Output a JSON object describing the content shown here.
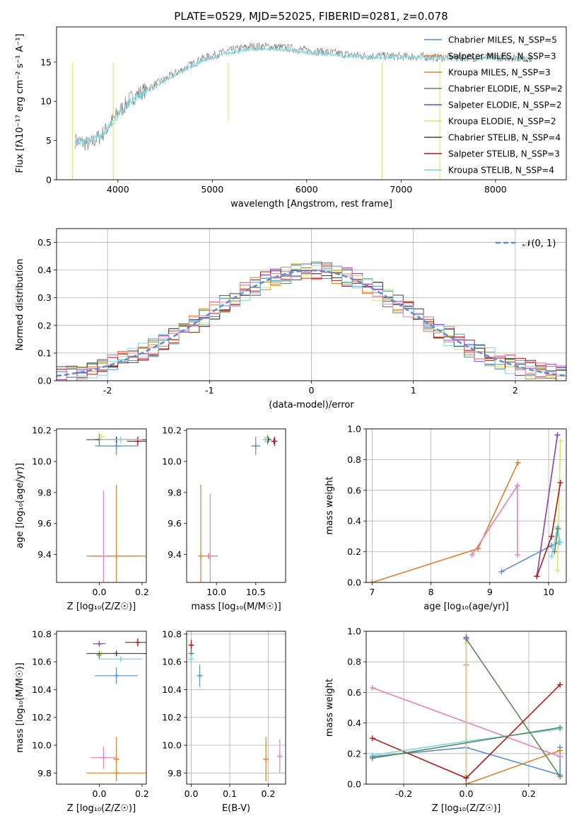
{
  "title": "PLATE=0529, MJD=52025, FIBERID=0281, z=0.078",
  "colors": [
    "#5a8dd6",
    "#e07f2c",
    "#e2832a",
    "#5a8a5a",
    "#8a3fb0",
    "#d7e56e",
    "#444444",
    "#b01818",
    "#7ad8e0",
    "#e882b4",
    "#808080"
  ],
  "chart_data": [
    {
      "id": "spectrum",
      "type": "line",
      "xlabel": "wavelength [Angstrom, rest frame]",
      "ylabel": "Flux [fλ10⁻¹⁷ erg cm⁻² s⁻¹ A⁻¹]",
      "xlim": [
        3350,
        8750
      ],
      "ylim": [
        0,
        19.5
      ],
      "xticks": [
        4000,
        5000,
        6000,
        7000,
        8000
      ],
      "yticks": [
        0,
        5,
        10,
        15
      ],
      "grid": false,
      "legend_position": "right",
      "legend": [
        {
          "label": "Chabrier MILES, N_SSP=5",
          "color": "#5a8dd6"
        },
        {
          "label": "Salpeter MILES, N_SSP=3",
          "color": "#e07f2c"
        },
        {
          "label": "Kroupa MILES, N_SSP=3",
          "color": "#e2832a"
        },
        {
          "label": "Chabrier ELODIE, N_SSP=2",
          "color": "#5a8a5a"
        },
        {
          "label": "Salpeter ELODIE, N_SSP=2",
          "color": "#8a3fb0"
        },
        {
          "label": "Kroupa ELODIE, N_SSP=2",
          "color": "#d7e56e"
        },
        {
          "label": "Chabrier STELIB, N_SSP=4",
          "color": "#444444"
        },
        {
          "label": "Salpeter STELIB, N_SSP=3",
          "color": "#b01818"
        },
        {
          "label": "Kroupa STELIB, N_SSP=4",
          "color": "#7ad8e0"
        }
      ],
      "series": [
        {
          "name": "observed",
          "color": "#808080",
          "x": [
            3550,
            3700,
            3850,
            4000,
            4150,
            4300,
            4450,
            4600,
            4750,
            4900,
            5050,
            5200,
            5400,
            5600,
            5800,
            6000,
            6200,
            6400,
            6600,
            6800,
            7000,
            7200,
            7400,
            7600,
            7800,
            8000,
            8200,
            8400
          ],
          "y": [
            5.0,
            4.5,
            6.0,
            8.5,
            10.5,
            11.5,
            12.5,
            13.5,
            14.5,
            15.5,
            16.0,
            16.5,
            17.0,
            17.0,
            16.8,
            16.5,
            16.3,
            16.0,
            15.8,
            15.8,
            15.7,
            15.7,
            15.6,
            15.6,
            15.6,
            15.6,
            15.6,
            15.5
          ]
        },
        {
          "name": "model",
          "color": "#7ad8e0",
          "x": [
            3550,
            3700,
            3850,
            4000,
            4150,
            4300,
            4450,
            4600,
            4750,
            4900,
            5050,
            5200,
            5400,
            5600,
            5800,
            6000,
            6200,
            6400,
            6600,
            6800,
            7000,
            7200,
            7400,
            7600,
            7800,
            8000,
            8200,
            8400
          ],
          "y": [
            5.0,
            4.8,
            6.0,
            8.2,
            10.2,
            11.3,
            12.3,
            13.3,
            14.3,
            15.2,
            15.8,
            16.2,
            16.6,
            16.7,
            16.5,
            16.2,
            16.0,
            15.8,
            15.7,
            15.6,
            15.6,
            15.6,
            15.5,
            15.5,
            15.5,
            15.5,
            15.5,
            15.4
          ]
        }
      ]
    },
    {
      "id": "residuals",
      "type": "line",
      "xlabel": "(data-model)/error",
      "ylabel": "Normed distribution",
      "xlim": [
        -2.5,
        2.5
      ],
      "ylim": [
        0,
        0.55
      ],
      "xticks": [
        -2,
        -1,
        0,
        1,
        2
      ],
      "yticks": [
        0.0,
        0.1,
        0.2,
        0.3,
        0.4,
        0.5
      ],
      "grid": true,
      "legend_position": "top-right",
      "legend": [
        {
          "label": "𝒩(0, 1)",
          "color": "#5a8dd6"
        }
      ],
      "hist_bins_start": -2.5,
      "hist_bin_width": 0.1,
      "gaussian_label": "𝒩(0, 1)"
    },
    {
      "id": "age-Z",
      "type": "scatter",
      "xlabel": "Z [log₁₀(Z/Z☉)]",
      "ylabel": "age  [log₁₀(age/yr)]",
      "xlim": [
        -0.2,
        0.22
      ],
      "ylim": [
        9.22,
        10.21
      ],
      "xticks": [
        0.0,
        0.2
      ],
      "yticks": [
        9.4,
        9.6,
        9.8,
        10.0,
        10.2
      ],
      "points": [
        {
          "x": 0.08,
          "y": 10.1,
          "xerr": 0.1,
          "yerr": 0.06,
          "color": "#5a8dd6"
        },
        {
          "x": 0.08,
          "y": 9.39,
          "xerr": 0.12,
          "yerr": 0.46,
          "color": "#e07f2c"
        },
        {
          "x": 0.08,
          "y": 9.39,
          "xerr": 0.14,
          "yerr": 0.01,
          "color": "#e2832a"
        },
        {
          "x": 0.0,
          "y": 10.14,
          "xerr": 0.01,
          "yerr": 0.04,
          "color": "#5a8a5a"
        },
        {
          "x": 0.08,
          "y": 10.14,
          "xerr": 0.14,
          "yerr": 0.01,
          "color": "#8a3fb0"
        },
        {
          "x": 0.01,
          "y": 10.16,
          "xerr": 0.02,
          "yerr": 0.02,
          "color": "#d7e56e"
        },
        {
          "x": 0.08,
          "y": 10.14,
          "xerr": 0.1,
          "yerr": 0.02,
          "color": "#444444"
        },
        {
          "x": 0.18,
          "y": 10.13,
          "xerr": 0.05,
          "yerr": 0.03,
          "color": "#b01818"
        },
        {
          "x": 0.1,
          "y": 10.14,
          "xerr": 0.1,
          "yerr": 0.02,
          "color": "#7ad8e0"
        },
        {
          "x": 0.02,
          "y": 9.39,
          "xerr": 0.01,
          "yerr": 0.42,
          "color": "#e882b4"
        }
      ]
    },
    {
      "id": "age-mass",
      "type": "scatter",
      "xlabel": "mass [log₁₀(M/M☉)]",
      "ylabel": "",
      "xlim": [
        9.62,
        10.88
      ],
      "ylim": [
        9.22,
        10.21
      ],
      "xticks": [
        10.0,
        10.5
      ],
      "yticks": [
        9.4,
        9.6,
        9.8,
        10.0,
        10.2
      ],
      "points": [
        {
          "x": 10.5,
          "y": 10.1,
          "xerr": 0.06,
          "yerr": 0.06,
          "color": "#5a8dd6"
        },
        {
          "x": 9.8,
          "y": 9.39,
          "xerr": 0.01,
          "yerr": 0.46,
          "color": "#e07f2c"
        },
        {
          "x": 9.9,
          "y": 9.39,
          "xerr": 0.12,
          "yerr": 0.01,
          "color": "#e2832a"
        },
        {
          "x": 10.65,
          "y": 10.14,
          "xerr": 0.01,
          "yerr": 0.03,
          "color": "#5a8a5a"
        },
        {
          "x": 10.73,
          "y": 10.13,
          "xerr": 0.02,
          "yerr": 0.01,
          "color": "#8a3fb0"
        },
        {
          "x": 10.66,
          "y": 10.15,
          "xerr": 0.01,
          "yerr": 0.02,
          "color": "#d7e56e"
        },
        {
          "x": 10.66,
          "y": 10.14,
          "xerr": 0.01,
          "yerr": 0.01,
          "color": "#444444"
        },
        {
          "x": 10.74,
          "y": 10.13,
          "xerr": 0.02,
          "yerr": 0.03,
          "color": "#b01818"
        },
        {
          "x": 10.62,
          "y": 10.14,
          "xerr": 0.01,
          "yerr": 0.02,
          "color": "#7ad8e0"
        },
        {
          "x": 9.92,
          "y": 9.39,
          "xerr": 0.02,
          "yerr": 0.4,
          "color": "#e882b4"
        }
      ]
    },
    {
      "id": "weight-age",
      "type": "line",
      "xlabel": "age  [log₁₀(age/yr)]",
      "ylabel": "mass weight",
      "xlim": [
        6.9,
        10.3
      ],
      "ylim": [
        0,
        1.0
      ],
      "xticks": [
        7,
        8,
        9,
        10
      ],
      "yticks": [
        0.0,
        0.2,
        0.4,
        0.6,
        0.8,
        1.0
      ],
      "grid": true,
      "series": [
        {
          "color": "#5a8dd6",
          "x": [
            9.2,
            10.05,
            10.18
          ],
          "y": [
            0.07,
            0.24,
            0.26
          ]
        },
        {
          "color": "#e07f2c",
          "x": [
            7.0,
            8.8,
            9.48
          ],
          "y": [
            0.0,
            0.22,
            0.78
          ]
        },
        {
          "color": "#e882b4",
          "x": [
            8.7,
            9.47,
            9.47
          ],
          "y": [
            0.18,
            0.63,
            0.18
          ]
        },
        {
          "color": "#8a3fb0",
          "x": [
            9.8,
            10.15
          ],
          "y": [
            0.04,
            0.96
          ]
        },
        {
          "color": "#d7e56e",
          "x": [
            10.15,
            10.2
          ],
          "y": [
            0.08,
            0.92
          ]
        },
        {
          "color": "#b01818",
          "x": [
            9.8,
            10.05,
            10.2
          ],
          "y": [
            0.04,
            0.3,
            0.65
          ]
        },
        {
          "color": "#7ad8e0",
          "x": [
            10.05,
            10.15,
            10.2
          ],
          "y": [
            0.17,
            0.36,
            0.26
          ]
        },
        {
          "color": "#5a8a5a",
          "x": [
            10.1,
            10.16
          ],
          "y": [
            0.2,
            0.35
          ]
        }
      ]
    },
    {
      "id": "mass-Z",
      "type": "scatter",
      "xlabel": "Z [log₁₀(Z/Z☉)]",
      "ylabel": "mass [log₁₀(M/M☉)]",
      "xlim": [
        -0.2,
        0.22
      ],
      "ylim": [
        9.72,
        10.82
      ],
      "xticks": [
        0.0,
        0.2
      ],
      "yticks": [
        9.8,
        10.0,
        10.2,
        10.4,
        10.6,
        10.8
      ],
      "points": [
        {
          "x": 0.08,
          "y": 10.5,
          "xerr": 0.1,
          "yerr": 0.06,
          "color": "#5a8dd6"
        },
        {
          "x": 0.08,
          "y": 9.8,
          "xerr": 0.14,
          "yerr": 0.01,
          "color": "#e07f2c"
        },
        {
          "x": 0.08,
          "y": 9.9,
          "xerr": 0.01,
          "yerr": 0.16,
          "color": "#e2832a"
        },
        {
          "x": 0.0,
          "y": 10.65,
          "xerr": 0.01,
          "yerr": 0.03,
          "color": "#5a8a5a"
        },
        {
          "x": 0.0,
          "y": 10.73,
          "xerr": 0.03,
          "yerr": 0.02,
          "color": "#8a3fb0"
        },
        {
          "x": 0.01,
          "y": 10.66,
          "xerr": 0.02,
          "yerr": 0.02,
          "color": "#d7e56e"
        },
        {
          "x": 0.08,
          "y": 10.66,
          "xerr": 0.14,
          "yerr": 0.01,
          "color": "#444444"
        },
        {
          "x": 0.18,
          "y": 10.74,
          "xerr": 0.06,
          "yerr": 0.03,
          "color": "#b01818"
        },
        {
          "x": 0.1,
          "y": 10.62,
          "xerr": 0.1,
          "yerr": 0.02,
          "color": "#7ad8e0"
        },
        {
          "x": 0.02,
          "y": 9.91,
          "xerr": 0.06,
          "yerr": 0.08,
          "color": "#e882b4"
        }
      ]
    },
    {
      "id": "mass-EBV",
      "type": "scatter",
      "xlabel": "E(B-V)",
      "ylabel": "",
      "xlim": [
        -0.012,
        0.245
      ],
      "ylim": [
        9.72,
        10.82
      ],
      "xticks": [
        0.0,
        0.1,
        0.2
      ],
      "yticks": [
        9.8,
        10.0,
        10.2,
        10.4,
        10.6,
        10.8
      ],
      "grid": true,
      "points": [
        {
          "x": 0.0,
          "y": 10.72,
          "xerr": 0.001,
          "yerr": 0.04,
          "color": "#b01818"
        },
        {
          "x": 0.0,
          "y": 10.66,
          "xerr": 0.001,
          "yerr": 0.03,
          "color": "#5a8a5a"
        },
        {
          "x": 0.0,
          "y": 10.62,
          "xerr": 0.001,
          "yerr": 0.03,
          "color": "#7ad8e0"
        },
        {
          "x": 0.022,
          "y": 10.5,
          "xerr": 0.001,
          "yerr": 0.08,
          "color": "#5a8dd6"
        },
        {
          "x": 0.194,
          "y": 9.9,
          "xerr": 0.001,
          "yerr": 0.16,
          "color": "#e07f2c"
        },
        {
          "x": 0.23,
          "y": 9.92,
          "xerr": 0.001,
          "yerr": 0.12,
          "color": "#e882b4"
        }
      ]
    },
    {
      "id": "weight-Z",
      "type": "line",
      "xlabel": "Z [log₁₀(Z/Z☉)]",
      "ylabel": "mass weight",
      "xlim": [
        -0.32,
        0.32
      ],
      "ylim": [
        0,
        1.0
      ],
      "xticks": [
        -0.2,
        0.0,
        0.2
      ],
      "yticks": [
        0.0,
        0.2,
        0.4,
        0.6,
        0.8,
        1.0
      ],
      "grid": true,
      "series": [
        {
          "color": "#5a8dd6",
          "x": [
            -0.3,
            0.0,
            0.3,
            0.3
          ],
          "y": [
            0.18,
            0.24,
            0.06,
            0.24
          ]
        },
        {
          "color": "#e07f2c",
          "x": [
            0.0,
            0.3
          ],
          "y": [
            0.0,
            0.22
          ]
        },
        {
          "color": "#e2832a",
          "x": [
            0.0,
            0.0
          ],
          "y": [
            0.0,
            0.78
          ]
        },
        {
          "color": "#e882b4",
          "x": [
            -0.3,
            0.3
          ],
          "y": [
            0.63,
            0.18
          ]
        },
        {
          "color": "#8a3fb0",
          "x": [
            0.0,
            0.0
          ],
          "y": [
            0.04,
            0.96
          ]
        },
        {
          "color": "#d7e56e",
          "x": [
            0.0,
            0.0
          ],
          "y": [
            0.06,
            0.92
          ]
        },
        {
          "color": "#5a8a5a",
          "x": [
            0.0,
            0.3
          ],
          "y": [
            0.95,
            0.05
          ]
        },
        {
          "color": "#b01818",
          "x": [
            -0.3,
            0.0,
            0.3
          ],
          "y": [
            0.3,
            0.04,
            0.65
          ]
        },
        {
          "color": "#7ad8e0",
          "x": [
            -0.3,
            0.0,
            0.3
          ],
          "y": [
            0.19,
            0.28,
            0.36
          ]
        },
        {
          "color": "#5a8a5a",
          "x": [
            -0.3,
            0.3
          ],
          "y": [
            0.17,
            0.37
          ]
        }
      ]
    }
  ]
}
